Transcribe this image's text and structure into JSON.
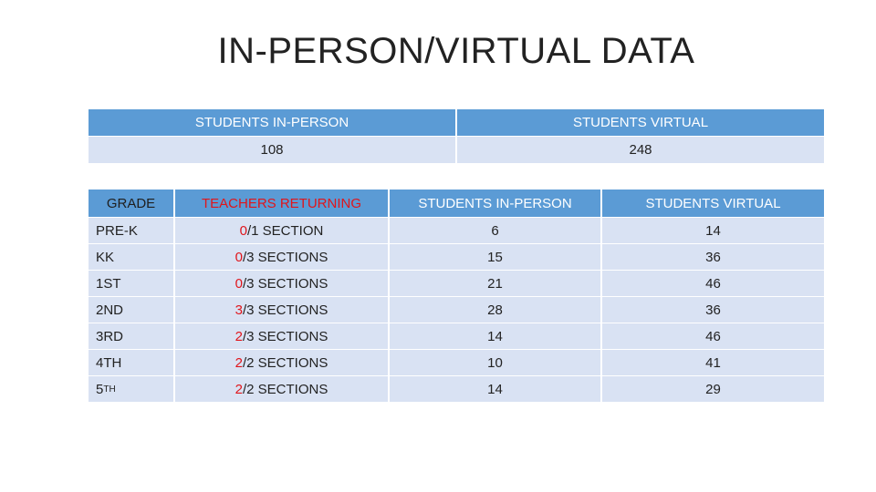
{
  "title": "IN-PERSON/VIRTUAL DATA",
  "summary": {
    "headers": [
      "STUDENTS IN-PERSON",
      "STUDENTS VIRTUAL"
    ],
    "values": [
      "108",
      "248"
    ]
  },
  "grades": {
    "headers": [
      "GRADE",
      "TEACHERS RETURNING",
      "STUDENTS IN-PERSON",
      "STUDENTS VIRTUAL"
    ],
    "rows": [
      {
        "grade": "PRE-K",
        "teach_num": "0",
        "teach_rest": "/1 SECTION",
        "in_person": "6",
        "virtual": "14"
      },
      {
        "grade": "KK",
        "teach_num": "0",
        "teach_rest": "/3 SECTIONS",
        "in_person": "15",
        "virtual": "36"
      },
      {
        "grade": "1ST",
        "teach_num": "0",
        "teach_rest": "/3 SECTIONS",
        "in_person": "21",
        "virtual": "46"
      },
      {
        "grade": "2ND",
        "teach_num": "3",
        "teach_rest": "/3 SECTIONS",
        "in_person": "28",
        "virtual": "36"
      },
      {
        "grade": "3RD",
        "teach_num": "2",
        "teach_rest": "/3 SECTIONS",
        "in_person": "14",
        "virtual": "46"
      },
      {
        "grade": "4TH",
        "teach_num": "2",
        "teach_rest": "/2 SECTIONS",
        "in_person": "10",
        "virtual": "41"
      },
      {
        "grade": "5",
        "grade_sup": "TH",
        "teach_num": "2",
        "teach_rest": "/2 SECTIONS",
        "in_person": "14",
        "virtual": "29"
      }
    ]
  },
  "colors": {
    "header_blue": "#5b9bd5",
    "row_light": "#d9e2f3",
    "accent_red": "#e0151b"
  }
}
